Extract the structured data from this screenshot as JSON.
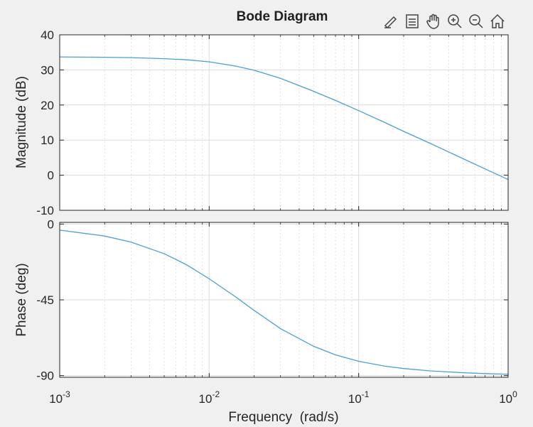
{
  "chart_data": {
    "type": "line",
    "title": "Bode Diagram",
    "xlabel": "Frequency  (rad/s)",
    "x_scale": "log",
    "xlim": [
      0.001,
      1
    ],
    "x_ticks": [
      0.001,
      0.01,
      0.1,
      1
    ],
    "x_tick_labels": [
      {
        "base": "10",
        "exp": "-3"
      },
      {
        "base": "10",
        "exp": "-2"
      },
      {
        "base": "10",
        "exp": "-1"
      },
      {
        "base": "10",
        "exp": "0"
      }
    ],
    "grid": true,
    "color": "#4a9fd6",
    "panels": [
      {
        "name": "magnitude",
        "ylabel": "Magnitude (dB)",
        "ylim": [
          -10,
          40
        ],
        "y_ticks": [
          -10,
          0,
          10,
          20,
          30,
          40
        ],
        "x": [
          0.001,
          0.002,
          0.003,
          0.005,
          0.007,
          0.01,
          0.015,
          0.02,
          0.03,
          0.05,
          0.07,
          0.1,
          0.15,
          0.2,
          0.3,
          0.5,
          0.7,
          1
        ],
        "y": [
          33.7,
          33.6,
          33.5,
          33.2,
          32.9,
          32.3,
          31.1,
          29.9,
          27.6,
          23.9,
          21.3,
          18.4,
          15.0,
          12.5,
          9.1,
          4.7,
          1.8,
          -1.2
        ]
      },
      {
        "name": "phase",
        "ylabel": "Phase (deg)",
        "ylim": [
          -91,
          1
        ],
        "y_ticks": [
          -90,
          -45,
          0
        ],
        "x": [
          0.001,
          0.002,
          0.003,
          0.005,
          0.007,
          0.01,
          0.015,
          0.02,
          0.03,
          0.05,
          0.07,
          0.1,
          0.15,
          0.2,
          0.3,
          0.5,
          0.7,
          1
        ],
        "y": [
          -3.6,
          -7.1,
          -10.7,
          -17.6,
          -24.0,
          -32.5,
          -43.2,
          -51.3,
          -62.1,
          -72.6,
          -77.7,
          -81.5,
          -84.4,
          -85.8,
          -87.2,
          -88.3,
          -88.8,
          -89.2
        ]
      }
    ]
  },
  "toolbar": {
    "icons": [
      "brush-icon",
      "legend-icon",
      "pan-icon",
      "zoom-in-icon",
      "zoom-out-icon",
      "home-icon"
    ]
  }
}
